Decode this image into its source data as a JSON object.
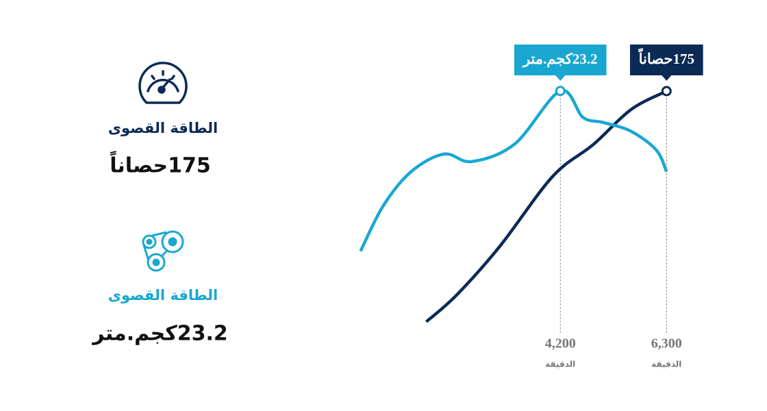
{
  "chart_data": {
    "type": "line",
    "xlim": [
      0,
      7000
    ],
    "xticks": [
      {
        "value": 4200,
        "label": "4,200"
      },
      {
        "value": 6300,
        "label": "6,300"
      }
    ],
    "x_unit": "الدقيقة",
    "ylim": [
      0,
      200
    ],
    "y2lim": [
      0,
      26.5
    ],
    "series": [
      {
        "name": "الطاقة القصوى",
        "color": "#0b2a55",
        "x": [
          1550,
          2150,
          3000,
          4050,
          4850,
          5600,
          6300
        ],
        "values": [
          37,
          53,
          82,
          124,
          143,
          164,
          175
        ],
        "annotation": "175حصاناً",
        "value_label": "175حصاناً"
      },
      {
        "name": "الطاقة القصوى",
        "color": "#19a7d2",
        "axis": "y2",
        "x": [
          250,
          700,
          1250,
          1900,
          2450,
          3300,
          4200,
          4650,
          5050,
          5600,
          6100,
          6300
        ],
        "values": [
          10.5,
          14.1,
          16.8,
          18.2,
          17.6,
          19.0,
          23.2,
          21.1,
          20.7,
          20.0,
          18.5,
          16.8
        ],
        "annotation": "23.2كجم.متر",
        "value_label": "23.2كجم.متر"
      }
    ]
  }
}
